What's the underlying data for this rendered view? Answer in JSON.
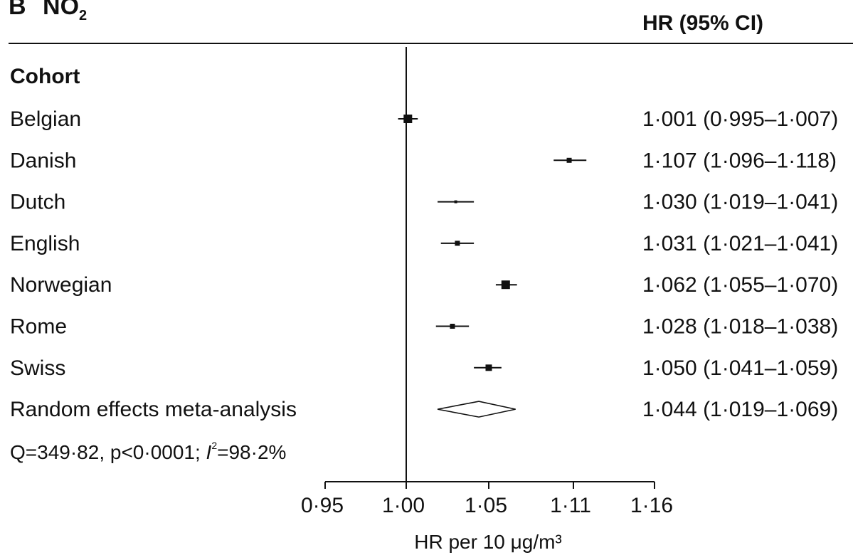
{
  "panel": {
    "letter": "B",
    "pollutant_main": "NO",
    "pollutant_sub": "2"
  },
  "table_header": {
    "estimate_column": "HR (95% CI)",
    "group_label": "Cohort"
  },
  "stats": {
    "text_pre": "Q=349·82, p<0·0001; ",
    "text_I": "I",
    "text_sup": "2",
    "text_post": "=98·2%"
  },
  "chart_data": {
    "type": "forest",
    "xlabel": "HR per 10 μg/m³",
    "xlim": [
      0.95,
      1.16
    ],
    "reference_line": 1.0,
    "x_ticks": [
      0.95,
      1.0,
      1.05,
      1.11,
      1.16
    ],
    "x_tick_labels": [
      "0·95",
      "1·00",
      "1·05",
      "1·11",
      "1·16"
    ],
    "rows": [
      {
        "label": "Belgian",
        "hr": 1.001,
        "lo": 0.995,
        "hi": 1.007,
        "text": "1·001 (0·995–1·007)",
        "marker": "square",
        "size": "large"
      },
      {
        "label": "Danish",
        "hr": 1.107,
        "lo": 1.096,
        "hi": 1.118,
        "text": "1·107 (1·096–1·118)",
        "marker": "square",
        "size": "small"
      },
      {
        "label": "Dutch",
        "hr": 1.03,
        "lo": 1.019,
        "hi": 1.041,
        "text": "1·030 (1·019–1·041)",
        "marker": "square",
        "size": "tiny"
      },
      {
        "label": "English",
        "hr": 1.031,
        "lo": 1.021,
        "hi": 1.041,
        "text": "1·031 (1·021–1·041)",
        "marker": "square",
        "size": "small"
      },
      {
        "label": "Norwegian",
        "hr": 1.062,
        "lo": 1.055,
        "hi": 1.07,
        "text": "1·062 (1·055–1·070)",
        "marker": "square",
        "size": "large"
      },
      {
        "label": "Rome",
        "hr": 1.028,
        "lo": 1.018,
        "hi": 1.038,
        "text": "1·028 (1·018–1·038)",
        "marker": "square",
        "size": "small"
      },
      {
        "label": "Swiss",
        "hr": 1.05,
        "lo": 1.041,
        "hi": 1.059,
        "text": "1·050 (1·041–1·059)",
        "marker": "square",
        "size": "medium"
      },
      {
        "label": "Random effects meta-analysis",
        "hr": 1.044,
        "lo": 1.019,
        "hi": 1.069,
        "text": "1·044 (1·019–1·069)",
        "marker": "diamond",
        "size": ""
      }
    ]
  }
}
